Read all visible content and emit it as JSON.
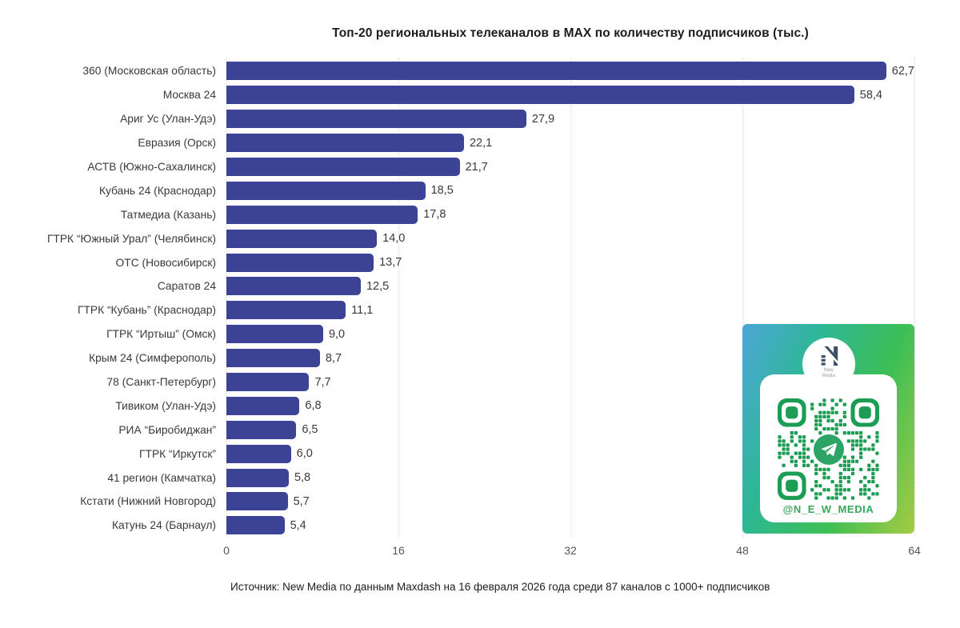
{
  "title": "Топ-20 региональных телеканалов в MAX по количеству подписчиков (тыс.)",
  "footer": "Источник: New Media по данным Maxdash на 16 февраля 2026 года среди 87 каналов с 1000+ подписчиков",
  "chart_data": {
    "type": "bar",
    "orientation": "horizontal",
    "categories": [
      "360 (Московская область)",
      "Москва 24",
      "Ариг Ус (Улан-Удэ)",
      "Евразия (Орск)",
      "АСТВ (Южно-Сахалинск)",
      "Кубань 24 (Краснодар)",
      "Татмедиа (Казань)",
      "ГТРК “Южный Урал” (Челябинск)",
      "ОТС (Новосибирск)",
      "Саратов 24",
      "ГТРК “Кубань” (Краснодар)",
      "ГТРК “Иртыш” (Омск)",
      "Крым 24 (Симферополь)",
      "78 (Санкт-Петербург)",
      "Тивиком (Улан-Удэ)",
      "РИА “Биробиджан”",
      "ГТРК “Иркутск”",
      "41 регион (Камчатка)",
      "Кстати (Нижний Новгород)",
      "Катунь 24 (Барнаул)"
    ],
    "values": [
      62.7,
      58.4,
      27.9,
      22.1,
      21.7,
      18.5,
      17.8,
      14.0,
      13.7,
      12.5,
      11.1,
      9.0,
      8.7,
      7.7,
      6.8,
      6.5,
      6.0,
      5.8,
      5.7,
      5.4
    ],
    "value_labels": [
      "62,7",
      "58,4",
      "27,9",
      "22,1",
      "21,7",
      "18,5",
      "17,8",
      "14,0",
      "13,7",
      "12,5",
      "11,1",
      "9,0",
      "8,7",
      "7,7",
      "6,8",
      "6,5",
      "6,0",
      "5,8",
      "5,7",
      "5,4"
    ],
    "xlim": [
      0,
      64
    ],
    "x_ticks": [
      0,
      16,
      32,
      48,
      64
    ],
    "x_tick_labels": [
      "0",
      "16",
      "32",
      "48",
      "64"
    ],
    "grid": "vertical-dotted",
    "legend": "none",
    "bar_color": "#3c4294"
  },
  "qr_card": {
    "logo_line1": "New",
    "logo_line2": "Media",
    "handle": "@N_E_W_MEDIA",
    "colors": {
      "qr_green": "#1d9c53",
      "telegram_circle_green": "#2ca466",
      "handle_green": "#35a85b",
      "logo_navy": "#3d5068",
      "gradient_blue": "#4da6d9",
      "gradient_teal": "#2eb795",
      "gradient_green": "#3dbf55",
      "gradient_yellow_green": "#a6cb42"
    }
  }
}
